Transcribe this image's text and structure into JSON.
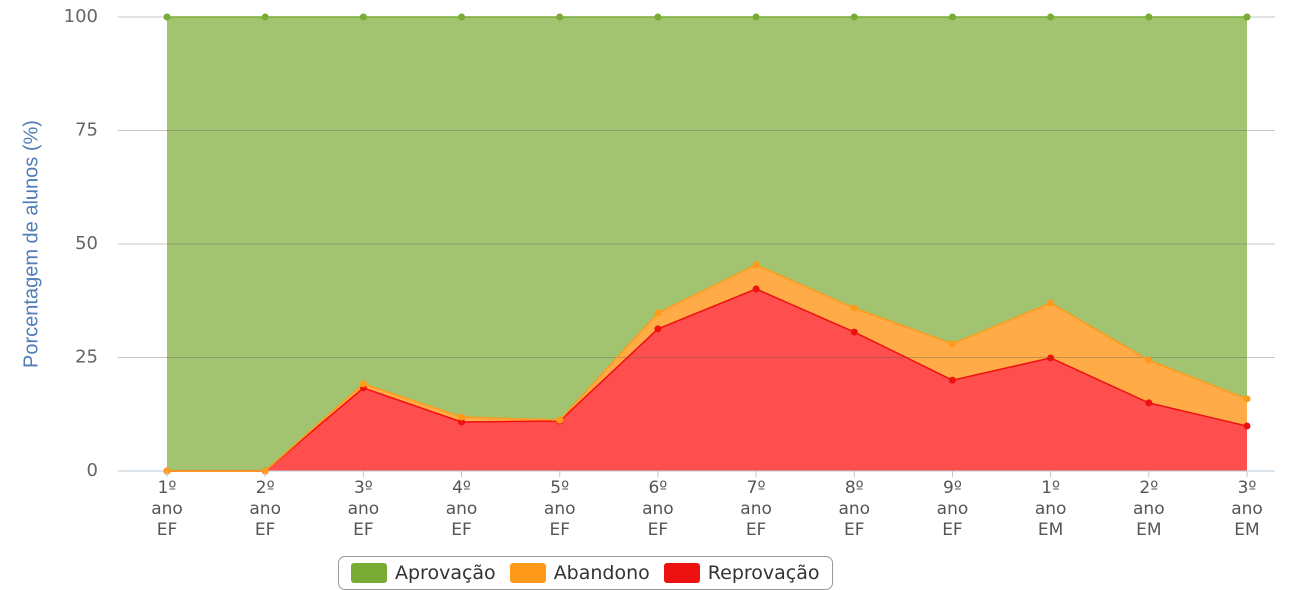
{
  "chart_data": {
    "type": "area",
    "stacked": true,
    "y_label": "Porcentagem de alunos (%)",
    "categories": [
      "1º ano EF",
      "2º ano EF",
      "3º ano EF",
      "4º ano EF",
      "5º ano EF",
      "6º ano EF",
      "7º ano EF",
      "8º ano EF",
      "9º ano EF",
      "1º ano EM",
      "2º ano EM",
      "3º ano EM"
    ],
    "series": [
      {
        "name": "Aprovação",
        "color": "#7aab35",
        "values": [
          100,
          100,
          80.8,
          88.1,
          88.8,
          65.2,
          54.6,
          64.1,
          72,
          63,
          75.6,
          84.1
        ]
      },
      {
        "name": "Abandono",
        "color": "#ff9a1a",
        "values": [
          0,
          0,
          0.9,
          1.1,
          0.2,
          3.5,
          5.3,
          5.3,
          8,
          12.1,
          9.4,
          6
        ]
      },
      {
        "name": "Reprovação",
        "color": "#ee1111",
        "values": [
          0,
          0,
          18.3,
          10.8,
          11,
          31.3,
          40.1,
          30.6,
          20,
          24.9,
          15,
          9.9
        ]
      }
    ],
    "ylim": [
      0,
      100
    ],
    "yticks": [
      0,
      25,
      50,
      75,
      100
    ],
    "grid": true
  }
}
